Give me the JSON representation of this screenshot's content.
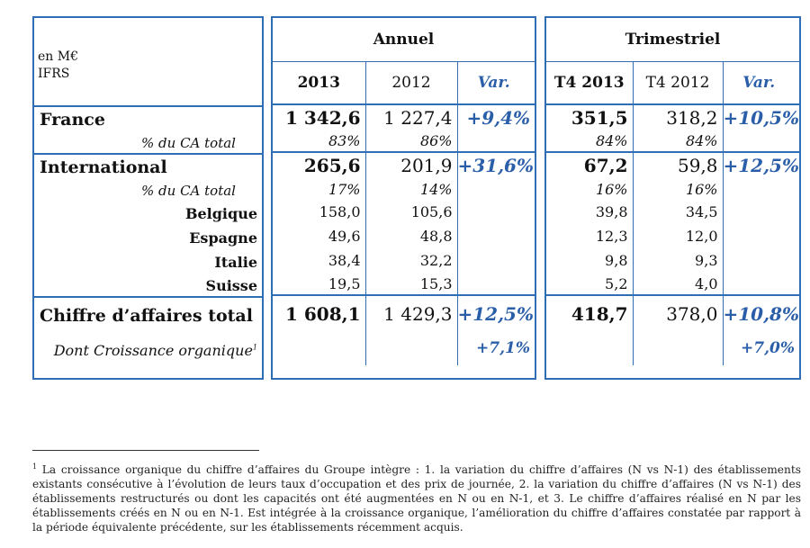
{
  "header": {
    "unit_line1": "en M€",
    "unit_line2": "IFRS",
    "annual_label": "Annuel",
    "quarterly_label": "Trimestriel",
    "col_2013": "2013",
    "col_2012": "2012",
    "col_var": "Var.",
    "col_t4_2013": "T4 2013",
    "col_t4_2012": "T4 2012",
    "col_var_q": "Var."
  },
  "rows": {
    "france": {
      "label": "France",
      "y2013": "1 342,6",
      "y2012": "1 227,4",
      "var": "+9,4%",
      "q2013": "351,5",
      "q2012": "318,2",
      "qvar": "+10,5%"
    },
    "france_pct": {
      "label": "% du CA total",
      "y2013": "83%",
      "y2012": "86%",
      "q2013": "84%",
      "q2012": "84%"
    },
    "international": {
      "label": "International",
      "y2013": "265,6",
      "y2012": "201,9",
      "var": "+31,6%",
      "q2013": "67,2",
      "q2012": "59,8",
      "qvar": "+12,5%"
    },
    "international_pct": {
      "label": "% du CA total",
      "y2013": "17%",
      "y2012": "14%",
      "q2013": "16%",
      "q2012": "16%"
    },
    "belgique": {
      "label": "Belgique",
      "y2013": "158,0",
      "y2012": "105,6",
      "q2013": "39,8",
      "q2012": "34,5"
    },
    "espagne": {
      "label": "Espagne",
      "y2013": "49,6",
      "y2012": "48,8",
      "q2013": "12,3",
      "q2012": "12,0"
    },
    "italie": {
      "label": "Italie",
      "y2013": "38,4",
      "y2012": "32,2",
      "q2013": "9,8",
      "q2012": "9,3"
    },
    "suisse": {
      "label": "Suisse",
      "y2013": "19,5",
      "y2012": "15,3",
      "q2013": "5,2",
      "q2012": "4,0"
    },
    "total": {
      "label": "Chiffre d’affaires total",
      "y2013": "1 608,1",
      "y2012": "1 429,3",
      "var": "+12,5%",
      "q2013": "418,7",
      "q2012": "378,0",
      "qvar": "+10,8%"
    },
    "organic": {
      "label": "Dont Croissance organique",
      "sup": "1",
      "var": "+7,1%",
      "qvar": "+7,0%"
    }
  },
  "footnote": {
    "marker": "1",
    "text": "La croissance organique du chiffre d’affaires du Groupe intègre : 1. la variation du chiffre d’affaires (N vs N-1) des établissements existants consécutive à l’évolution de leurs taux d’occupation et des prix de journée, 2. la variation du chiffre d’affaires (N vs N-1) des établissements restructurés ou dont les capacités ont été augmentées en N ou en N-1, et 3. Le chiffre d’affaires réalisé en N par les établissements créés en N ou en N-1. Est intégrée à la croissance organique, l’amélioration du chiffre d’affaires constatée par rapport à la période équivalente précédente, sur les établissements récemment acquis."
  },
  "colors": {
    "border": "#2f6db5",
    "var_text": "#2a5ea8"
  }
}
